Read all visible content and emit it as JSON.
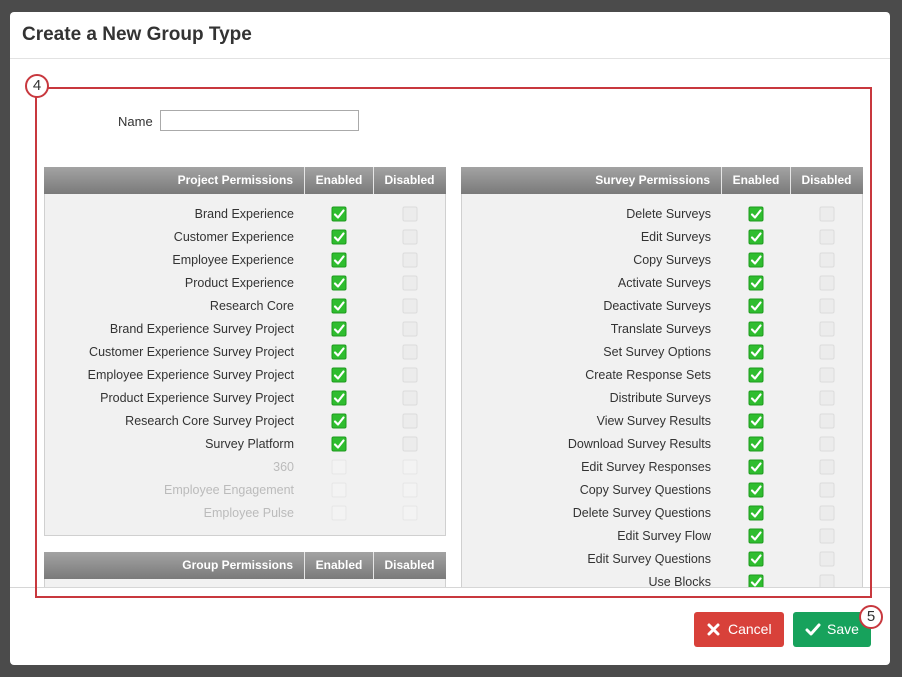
{
  "dialog": {
    "title": "Create a New Group Type",
    "name_label": "Name"
  },
  "annotations": [
    "4",
    "5"
  ],
  "project_permissions": {
    "headers": [
      "Project Permissions",
      "Enabled",
      "Disabled"
    ],
    "rows": [
      {
        "label": "Brand Experience",
        "enabled": true,
        "available": true
      },
      {
        "label": "Customer Experience",
        "enabled": true,
        "available": true
      },
      {
        "label": "Employee Experience",
        "enabled": true,
        "available": true
      },
      {
        "label": "Product Experience",
        "enabled": true,
        "available": true
      },
      {
        "label": "Research Core",
        "enabled": true,
        "available": true
      },
      {
        "label": "Brand Experience Survey Project",
        "enabled": true,
        "available": true
      },
      {
        "label": "Customer Experience Survey Project",
        "enabled": true,
        "available": true
      },
      {
        "label": "Employee Experience Survey Project",
        "enabled": true,
        "available": true
      },
      {
        "label": "Product Experience Survey Project",
        "enabled": true,
        "available": true
      },
      {
        "label": "Research Core Survey Project",
        "enabled": true,
        "available": true
      },
      {
        "label": "Survey Platform",
        "enabled": true,
        "available": true
      },
      {
        "label": "360",
        "enabled": false,
        "available": false
      },
      {
        "label": "Employee Engagement",
        "enabled": false,
        "available": false
      },
      {
        "label": "Employee Pulse",
        "enabled": false,
        "available": false
      }
    ]
  },
  "group_permissions": {
    "headers": [
      "Group Permissions",
      "Enabled",
      "Disabled"
    ]
  },
  "survey_permissions": {
    "headers": [
      "Survey Permissions",
      "Enabled",
      "Disabled"
    ],
    "rows": [
      {
        "label": "Delete Surveys",
        "enabled": true,
        "available": true
      },
      {
        "label": "Edit Surveys",
        "enabled": true,
        "available": true
      },
      {
        "label": "Copy Surveys",
        "enabled": true,
        "available": true
      },
      {
        "label": "Activate Surveys",
        "enabled": true,
        "available": true
      },
      {
        "label": "Deactivate Surveys",
        "enabled": true,
        "available": true
      },
      {
        "label": "Translate Surveys",
        "enabled": true,
        "available": true
      },
      {
        "label": "Set Survey Options",
        "enabled": true,
        "available": true
      },
      {
        "label": "Create Response Sets",
        "enabled": true,
        "available": true
      },
      {
        "label": "Distribute Surveys",
        "enabled": true,
        "available": true
      },
      {
        "label": "View Survey Results",
        "enabled": true,
        "available": true
      },
      {
        "label": "Download Survey Results",
        "enabled": true,
        "available": true
      },
      {
        "label": "Edit Survey Responses",
        "enabled": true,
        "available": true
      },
      {
        "label": "Copy Survey Questions",
        "enabled": true,
        "available": true
      },
      {
        "label": "Delete Survey Questions",
        "enabled": true,
        "available": true
      },
      {
        "label": "Edit Survey Flow",
        "enabled": true,
        "available": true
      },
      {
        "label": "Edit Survey Questions",
        "enabled": true,
        "available": true
      },
      {
        "label": "Use Blocks",
        "enabled": true,
        "available": true
      }
    ]
  },
  "buttons": {
    "cancel": "Cancel",
    "save": "Save"
  }
}
